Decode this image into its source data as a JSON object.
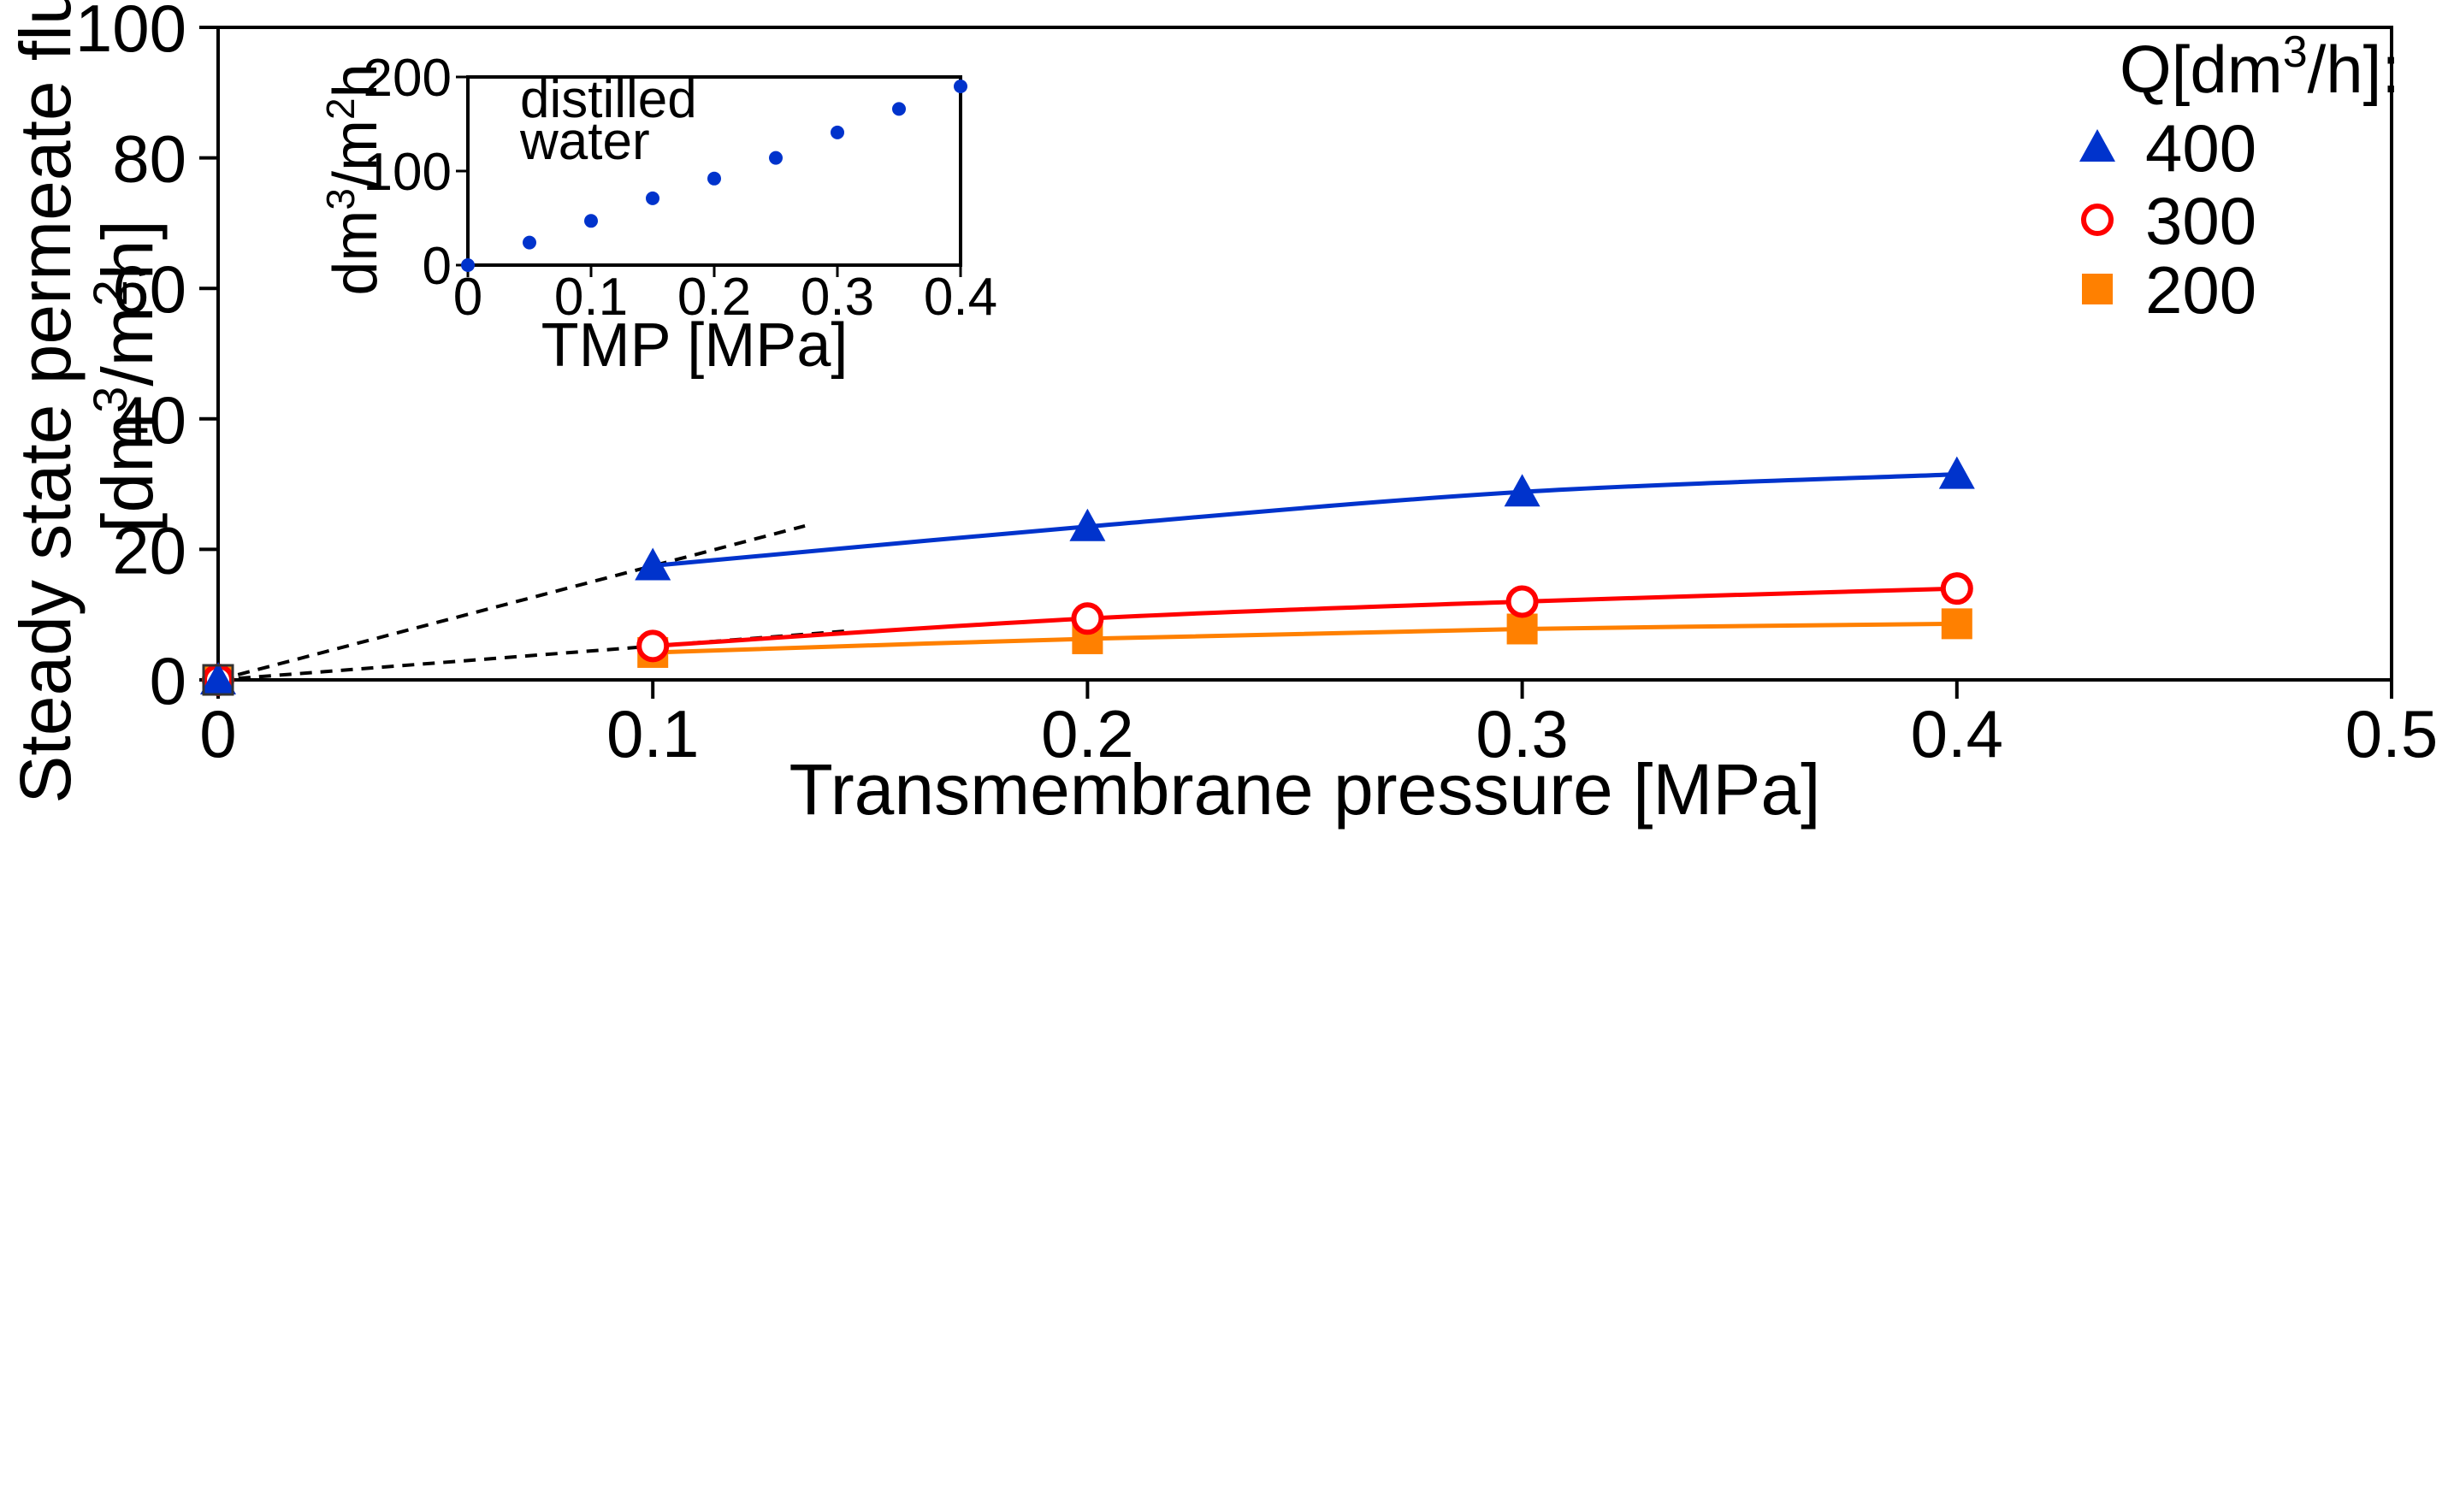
{
  "chart_data": [
    {
      "id": "main",
      "type": "line",
      "xlabel": "Transmembrane pressure [MPa]",
      "ylabel_line1": "Steady state permeate flux",
      "ylabel_line2_parts": [
        "[dm",
        "3",
        "/m",
        "2",
        "h]"
      ],
      "xlim": [
        0,
        0.5
      ],
      "ylim": [
        0,
        100
      ],
      "x_ticks": [
        0,
        0.1,
        0.2,
        0.3,
        0.4,
        0.5
      ],
      "x_tick_labels": [
        "0",
        "0.1",
        "0.2",
        "0.3",
        "0.4",
        "0.5"
      ],
      "y_ticks": [
        0,
        20,
        40,
        60,
        80,
        100
      ],
      "y_tick_labels": [
        "0",
        "20",
        "40",
        "60",
        "80",
        "100"
      ],
      "legend_title_parts": [
        "Q[dm",
        "3",
        "/h]:"
      ],
      "legend_position": "top-right",
      "series": [
        {
          "name": "400",
          "marker": "triangle",
          "color": "#0033cc",
          "x": [
            0,
            0.1,
            0.2,
            0.3,
            0.4
          ],
          "y": [
            0,
            17.5,
            23.5,
            28.8,
            31.5
          ]
        },
        {
          "name": "300",
          "marker": "open-circle",
          "color": "#ff0000",
          "x": [
            0,
            0.1,
            0.2,
            0.3,
            0.4
          ],
          "y": [
            0,
            5.2,
            9.4,
            12.0,
            14.0
          ]
        },
        {
          "name": "200",
          "marker": "square",
          "color": "#ff8000",
          "x": [
            0,
            0.1,
            0.2,
            0.3,
            0.4
          ],
          "y": [
            0,
            4.2,
            6.3,
            7.8,
            8.6
          ]
        }
      ],
      "tangent_lines": [
        {
          "style": "dashed",
          "color": "#000000",
          "x": [
            0,
            0.135
          ],
          "y": [
            0,
            23.6
          ]
        },
        {
          "style": "dashed",
          "color": "#000000",
          "x": [
            0,
            0.145
          ],
          "y": [
            0,
            7.5
          ]
        }
      ]
    },
    {
      "id": "inset",
      "type": "scatter",
      "annotation": [
        "distilled",
        "water"
      ],
      "xlabel": "TMP [MPa]",
      "ylabel_parts": [
        "dm",
        "3",
        "/m",
        "2",
        "h"
      ],
      "xlim": [
        0,
        0.4
      ],
      "ylim": [
        0,
        200
      ],
      "x_ticks": [
        0,
        0.1,
        0.2,
        0.3,
        0.4
      ],
      "x_tick_labels": [
        "0",
        "0.1",
        "0.2",
        "0.3",
        "0.4"
      ],
      "y_ticks": [
        0,
        100,
        200
      ],
      "y_tick_labels": [
        "0",
        "100",
        "200"
      ],
      "series": [
        {
          "name": "distilled water",
          "marker": "filled-circle",
          "color": "#0033cc",
          "x": [
            0,
            0.05,
            0.1,
            0.15,
            0.2,
            0.25,
            0.3,
            0.35,
            0.4
          ],
          "y": [
            0,
            24,
            47,
            71,
            92,
            114,
            141,
            166,
            190
          ]
        }
      ]
    }
  ]
}
